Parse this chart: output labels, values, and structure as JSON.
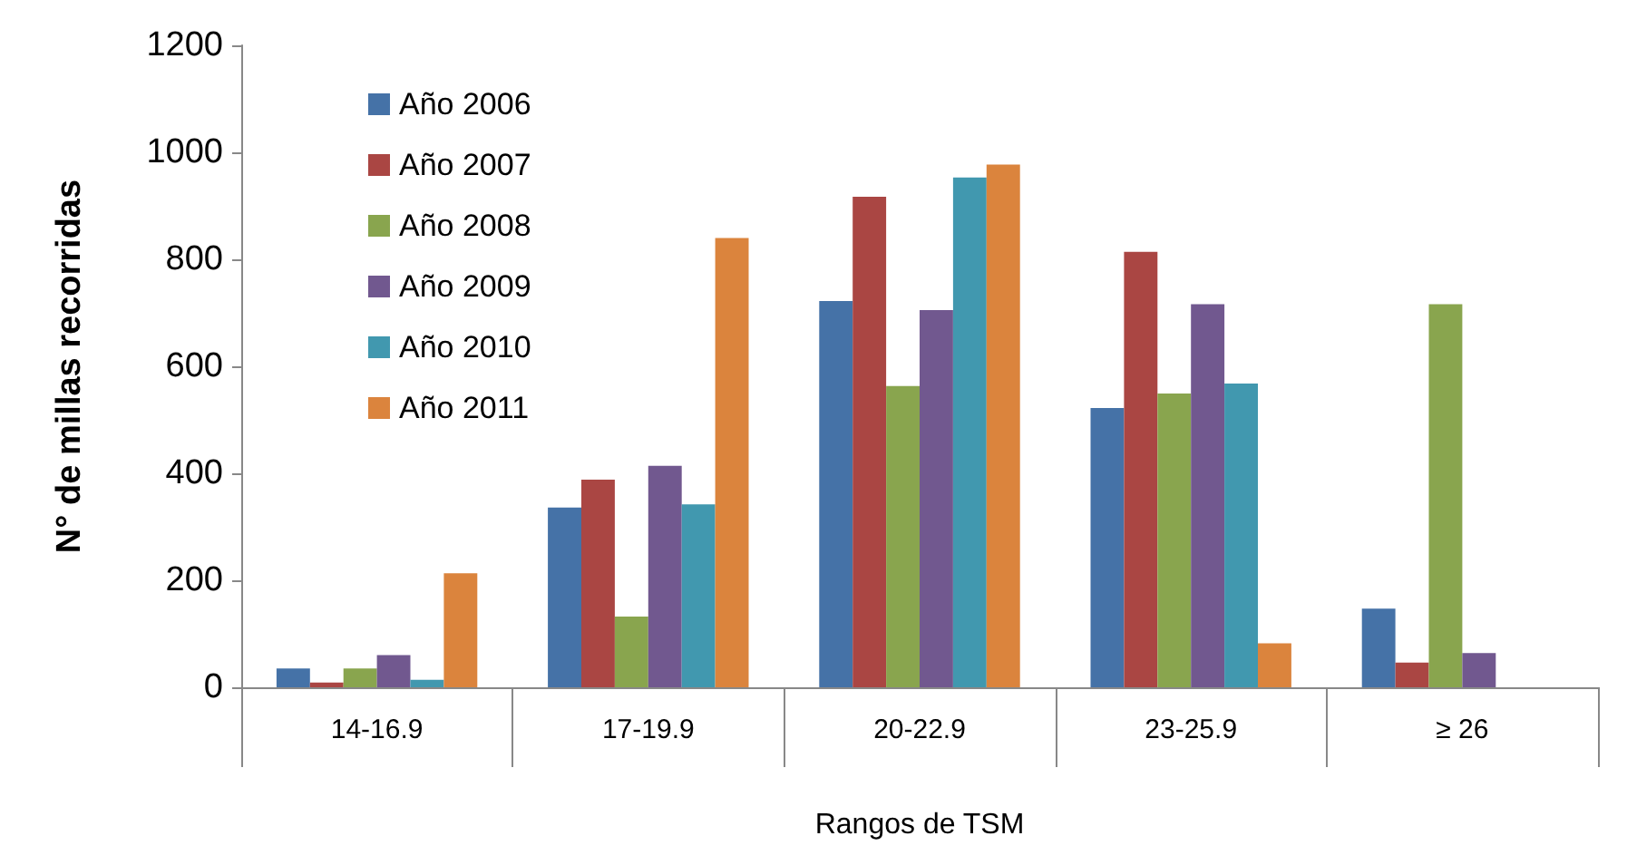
{
  "chart_data": {
    "type": "bar",
    "xlabel": "Rangos de TSM",
    "ylabel": "N° de millas recorridas",
    "categories": [
      "14-16.9",
      "17-19.9",
      "20-22.9",
      "23-25.9",
      "≥ 26"
    ],
    "series": [
      {
        "name": "Año 2006",
        "color": "#4572a7",
        "values": [
          35,
          336,
          722,
          522,
          147
        ]
      },
      {
        "name": "Año 2007",
        "color": "#aa4643",
        "values": [
          9,
          388,
          917,
          814,
          46
        ]
      },
      {
        "name": "Año 2008",
        "color": "#89a54e",
        "values": [
          35,
          132,
          563,
          549,
          716
        ]
      },
      {
        "name": "Año 2009",
        "color": "#71588f",
        "values": [
          60,
          414,
          705,
          716,
          64
        ]
      },
      {
        "name": "Año 2010",
        "color": "#4198af",
        "values": [
          14,
          342,
          953,
          568,
          null
        ]
      },
      {
        "name": "Año 2011",
        "color": "#db843d",
        "values": [
          213,
          840,
          977,
          82,
          null
        ]
      }
    ],
    "ylim": [
      0,
      1200
    ],
    "yticks": [
      0,
      200,
      400,
      600,
      800,
      1000,
      1200
    ],
    "grid": false,
    "legend": "top left"
  }
}
